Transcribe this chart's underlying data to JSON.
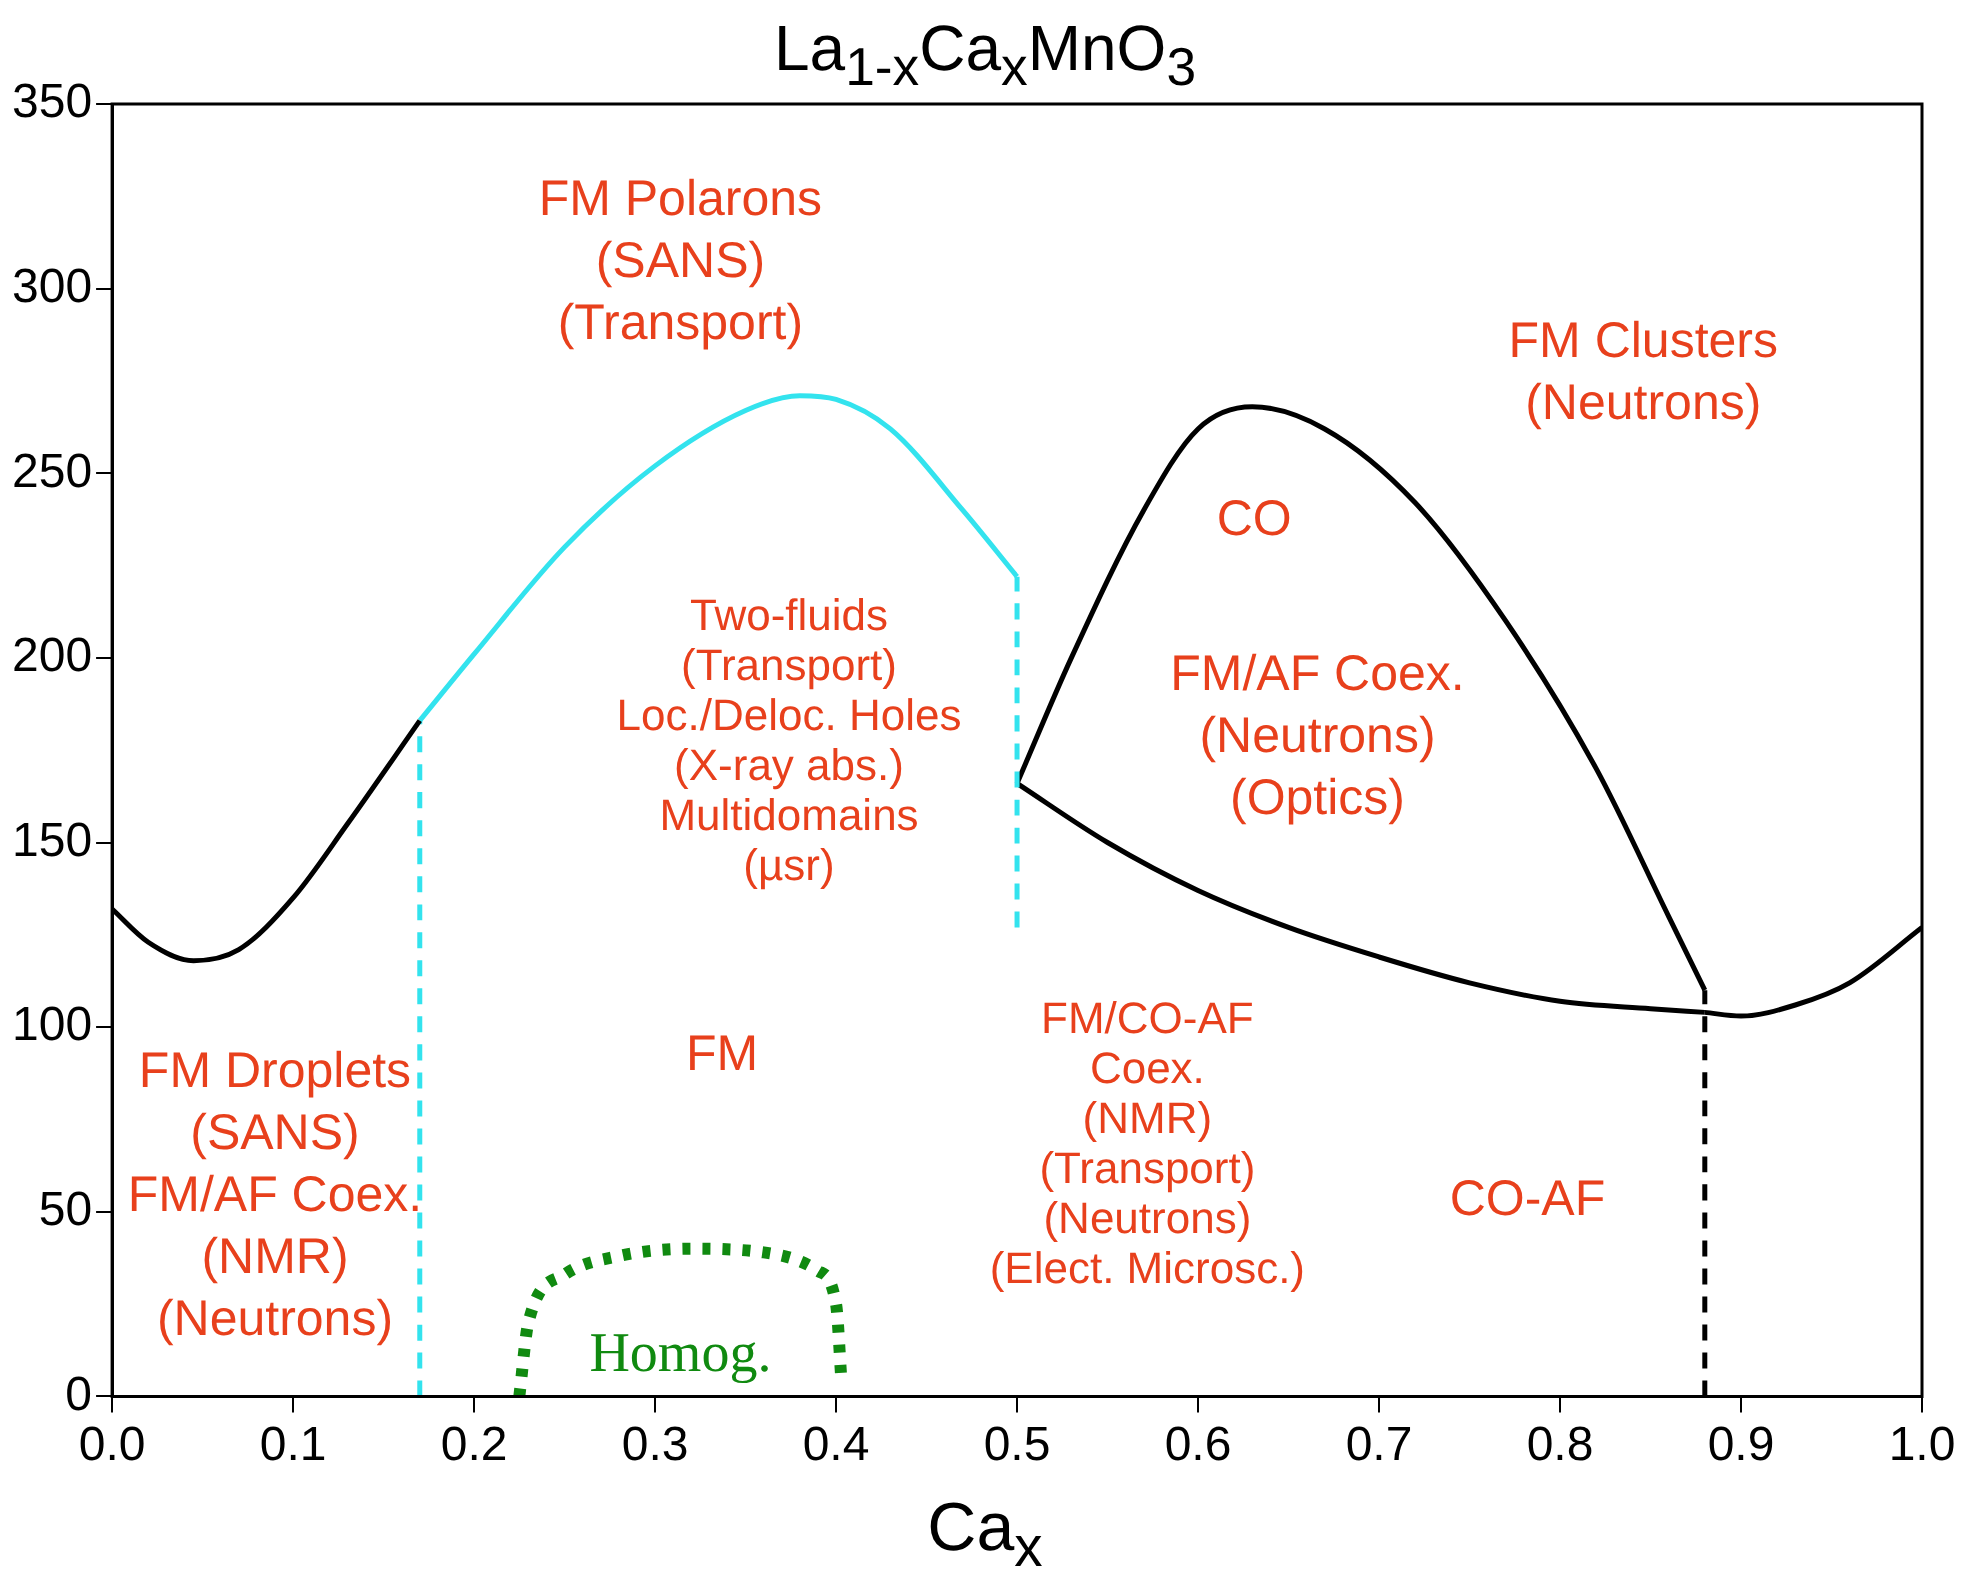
{
  "chart_data": {
    "type": "line",
    "title": "La$_{1-x}$Ca$_{x}$MnO$_{3}$",
    "xlabel": "Ca$_{x}$",
    "xlim": [
      0,
      1
    ],
    "xticks": [
      {
        "value": 0,
        "label": "0.0"
      },
      0.1,
      0.2,
      0.3,
      0.4,
      0.5,
      0.6,
      0.7,
      0.8,
      0.9,
      {
        "value": 1,
        "label": "1.0"
      }
    ],
    "ylim": [
      0,
      350
    ],
    "yticks": [
      0,
      50,
      100,
      150,
      200,
      250,
      300,
      350
    ],
    "marker": "none",
    "series": [
      {
        "color": "#000000",
        "line_style": "solid",
        "x": [
          0,
          0.02,
          0.045,
          0.07,
          0.1,
          0.13,
          0.17
        ],
        "values": [
          132,
          123,
          118,
          121,
          135,
          155,
          183
        ]
      },
      {
        "color": "#33e3ee",
        "line_style": "solid",
        "x": [
          0.17,
          0.2,
          0.25,
          0.3,
          0.35,
          0.38,
          0.4,
          0.43,
          0.47,
          0.5
        ],
        "values": [
          183,
          201,
          230,
          252,
          267,
          271,
          270,
          262,
          240,
          222
        ]
      },
      {
        "color": "#33e3ee",
        "line_style": "dashed",
        "x": [
          0.17,
          0.17
        ],
        "values": [
          0,
          183
        ]
      },
      {
        "color": "#33e3ee",
        "line_style": "dashed",
        "x": [
          0.5,
          0.5
        ],
        "values": [
          127,
          222
        ]
      },
      {
        "color": "#000000",
        "line_style": "solid",
        "x": [
          0.5,
          0.53,
          0.57,
          0.6,
          0.63,
          0.67,
          0.72,
          0.77,
          0.82,
          0.86,
          0.88
        ],
        "values": [
          166,
          200,
          240,
          262,
          268,
          262,
          242,
          210,
          170,
          130,
          110
        ]
      },
      {
        "color": "#000000",
        "line_style": "solid",
        "x": [
          0.5,
          0.55,
          0.6,
          0.65,
          0.7,
          0.75,
          0.8,
          0.85,
          0.88
        ],
        "values": [
          166,
          150,
          137,
          127,
          119,
          112,
          107,
          105,
          104
        ]
      },
      {
        "color": "#000000",
        "line_style": "solid",
        "x": [
          0.88,
          0.9,
          0.93,
          0.96,
          1
        ],
        "values": [
          104,
          103,
          106,
          112,
          127
        ]
      },
      {
        "color": "#000000",
        "line_style": "dashed",
        "x": [
          0.88,
          0.88
        ],
        "values": [
          0,
          110
        ]
      },
      {
        "name": "Homog.",
        "color": "#108a10",
        "line_style": "dotted",
        "x": [
          0.225,
          0.23,
          0.25,
          0.28,
          0.32,
          0.36,
          0.39,
          0.4,
          0.403
        ],
        "values": [
          0,
          20,
          33,
          38,
          40,
          39,
          34,
          25,
          4
        ]
      }
    ],
    "annotations": [
      "FM Polarons\n(SANS)\n(Transport)",
      "Two-fluids\n(Transport)\nLoc./Deloc. Holes\n(X-ray abs.)\nMultidomains\n(µsr)",
      "FM Clusters\n(Neutrons)",
      "CO",
      "FM/AF Coex.\n(Neutrons)\n(Optics)",
      "FM Droplets\n(SANS)\nFM/AF Coex.\n(NMR)\n(Neutrons)",
      "FM",
      "FM/CO-AF\nCoex.\n(NMR)\n(Transport)\n(Neutrons)\n(Elect. Microsc.)",
      "CO-AF"
    ]
  }
}
